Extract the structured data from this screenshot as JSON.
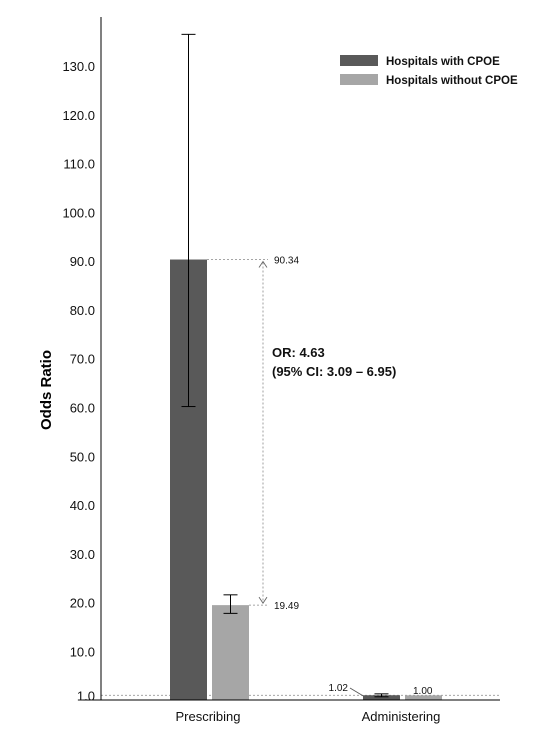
{
  "colors": {
    "with_cpoe": "#595959",
    "without_cpoe": "#a6a6a6",
    "axis": "#000000"
  },
  "chart_data": {
    "type": "bar",
    "ylabel": "Odds Ratio",
    "categories": [
      "Prescribing",
      "Administering"
    ],
    "ylim": [
      0,
      137
    ],
    "y_ticks": [
      "1.0",
      "10.0",
      "20.0",
      "30.0",
      "40.0",
      "50.0",
      "60.0",
      "70.0",
      "80.0",
      "90.0",
      "100.0",
      "110.0",
      "120.0",
      "130.0"
    ],
    "y_tick_values": [
      1,
      10,
      20,
      30,
      40,
      50,
      60,
      70,
      80,
      90,
      100,
      110,
      120,
      130
    ],
    "legend_position": "top-right",
    "series": [
      {
        "name": "Hospitals with CPOE",
        "values": [
          90.34,
          1.02
        ],
        "ci_low": [
          60.2,
          0.7
        ],
        "ci_high": [
          136.5,
          1.3
        ],
        "labels": [
          "90.34",
          "1.02"
        ]
      },
      {
        "name": "Hospitals without CPOE",
        "values": [
          19.49,
          1.0
        ],
        "ci_low": [
          17.8,
          null
        ],
        "ci_high": [
          21.6,
          null
        ],
        "labels": [
          "19.49",
          "1.00"
        ]
      }
    ],
    "reference_line": 1.0,
    "annotation": {
      "line1": "OR: 4.63",
      "line2": "(95% CI: 3.09 – 6.95)"
    }
  }
}
